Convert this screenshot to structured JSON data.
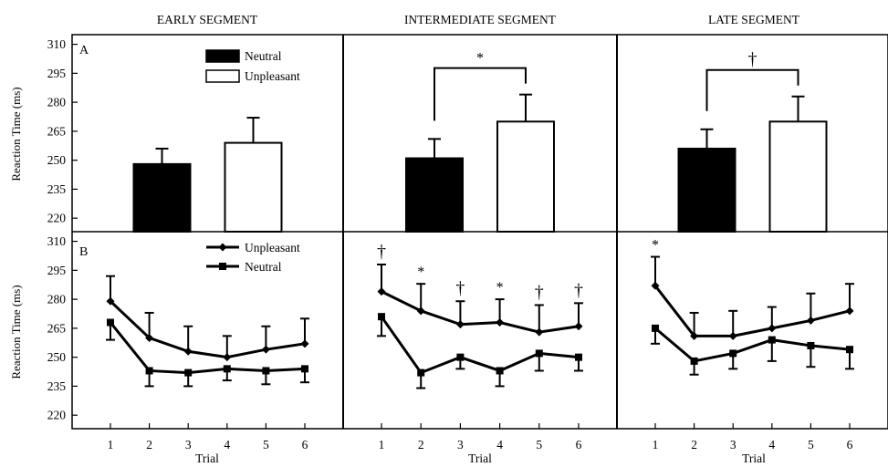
{
  "column_titles": [
    "EARLY SEGMENT",
    "INTERMEDIATE SEGMENT",
    "LATE SEGMENT"
  ],
  "row_labels": [
    "A",
    "B"
  ],
  "ylabel": "Reaction Time (ms)",
  "xlabel": "Trial",
  "chart_data": [
    {
      "type": "bar",
      "panel": "A-early",
      "categories": [
        "Neutral",
        "Unpleasant"
      ],
      "values": [
        248,
        259
      ],
      "errors": [
        8,
        13
      ],
      "series_colors": [
        "#000000",
        "#ffffff"
      ],
      "ylim": [
        213,
        315
      ],
      "yticks": [
        220,
        235,
        250,
        265,
        280,
        295,
        310
      ],
      "legend": {
        "placement": "top-center",
        "entries": [
          "Neutral",
          "Unpleasant"
        ]
      },
      "significance": ""
    },
    {
      "type": "bar",
      "panel": "A-intermediate",
      "categories": [
        "Neutral",
        "Unpleasant"
      ],
      "values": [
        251,
        270
      ],
      "errors": [
        10,
        14
      ],
      "series_colors": [
        "#000000",
        "#ffffff"
      ],
      "ylim": [
        213,
        315
      ],
      "yticks": [
        220,
        235,
        250,
        265,
        280,
        295,
        310
      ],
      "significance": "*"
    },
    {
      "type": "bar",
      "panel": "A-late",
      "categories": [
        "Neutral",
        "Unpleasant"
      ],
      "values": [
        256,
        270
      ],
      "errors": [
        10,
        13
      ],
      "series_colors": [
        "#000000",
        "#ffffff"
      ],
      "ylim": [
        213,
        315
      ],
      "yticks": [
        220,
        235,
        250,
        265,
        280,
        295,
        310
      ],
      "significance": "†"
    },
    {
      "type": "line",
      "panel": "B-early",
      "x": [
        1,
        2,
        3,
        4,
        5,
        6
      ],
      "xticks": [
        "1",
        "2",
        "3",
        "4",
        "5",
        "6"
      ],
      "series": [
        {
          "name": "Unpleasant",
          "marker": "diamond",
          "values": [
            279,
            260,
            253,
            250,
            254,
            257
          ],
          "errors": [
            13,
            13,
            13,
            11,
            12,
            13
          ]
        },
        {
          "name": "Neutral",
          "marker": "square",
          "values": [
            268,
            243,
            242,
            244,
            243,
            244
          ],
          "errors": [
            9,
            8,
            7,
            6,
            7,
            7
          ]
        }
      ],
      "annotations": [
        "",
        "",
        "",
        "",
        "",
        ""
      ],
      "ylim": [
        213,
        315
      ],
      "yticks": [
        220,
        235,
        250,
        265,
        280,
        295,
        310
      ],
      "legend": {
        "placement": "top-center",
        "entries": [
          "Unpleasant",
          "Neutral"
        ]
      }
    },
    {
      "type": "line",
      "panel": "B-intermediate",
      "x": [
        1,
        2,
        3,
        4,
        5,
        6
      ],
      "xticks": [
        "1",
        "2",
        "3",
        "4",
        "5",
        "6"
      ],
      "series": [
        {
          "name": "Unpleasant",
          "marker": "diamond",
          "values": [
            284,
            274,
            267,
            268,
            263,
            266
          ],
          "errors": [
            14,
            14,
            12,
            12,
            14,
            12
          ]
        },
        {
          "name": "Neutral",
          "marker": "square",
          "values": [
            271,
            242,
            250,
            243,
            252,
            250
          ],
          "errors": [
            10,
            8,
            6,
            8,
            9,
            7
          ]
        }
      ],
      "annotations": [
        "†",
        "*",
        "†",
        "*",
        "†",
        "†"
      ],
      "ylim": [
        213,
        315
      ],
      "yticks": [
        220,
        235,
        250,
        265,
        280,
        295,
        310
      ]
    },
    {
      "type": "line",
      "panel": "B-late",
      "x": [
        1,
        2,
        3,
        4,
        5,
        6
      ],
      "xticks": [
        "1",
        "2",
        "3",
        "4",
        "5",
        "6"
      ],
      "series": [
        {
          "name": "Unpleasant",
          "marker": "diamond",
          "values": [
            287,
            261,
            261,
            265,
            269,
            274
          ],
          "errors": [
            15,
            12,
            13,
            11,
            14,
            14
          ]
        },
        {
          "name": "Neutral",
          "marker": "square",
          "values": [
            265,
            248,
            252,
            259,
            256,
            254
          ],
          "errors": [
            8,
            7,
            8,
            11,
            11,
            10
          ]
        }
      ],
      "annotations": [
        "*",
        "",
        "",
        "",
        "",
        ""
      ],
      "ylim": [
        213,
        315
      ],
      "yticks": [
        220,
        235,
        250,
        265,
        280,
        295,
        310
      ]
    }
  ]
}
